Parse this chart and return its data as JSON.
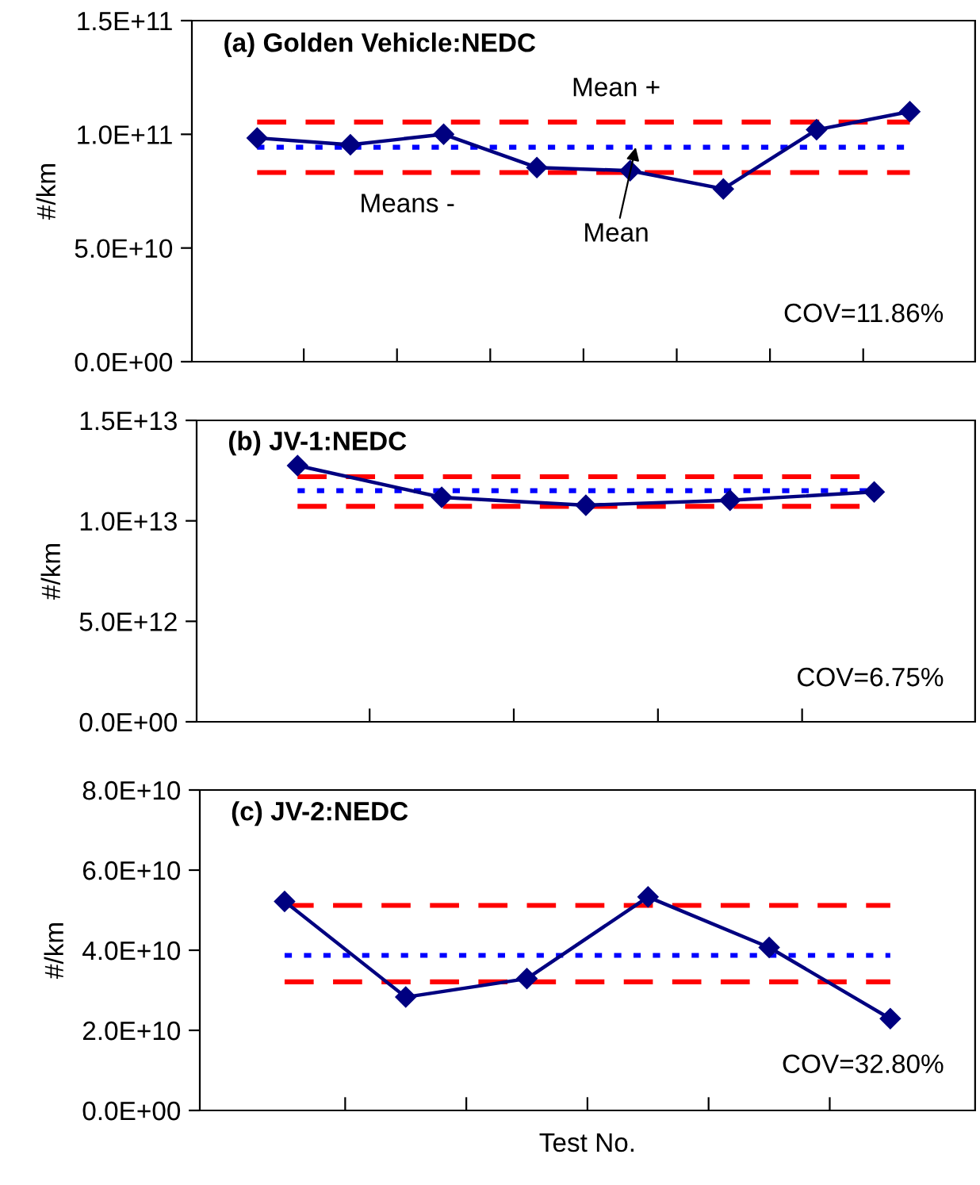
{
  "chart_data": [
    {
      "type": "line",
      "title": "(a) Golden Vehicle:NEDC",
      "ylabel": "#/km",
      "categories": [
        null,
        null,
        null,
        null,
        null,
        null,
        null,
        null
      ],
      "series": [
        {
          "color": "#000080",
          "values": [
            98400000000.0,
            95400000000.0,
            100000000000.0,
            85400000000.0,
            84000000000.0,
            76000000000.0,
            102000000000.0,
            110000000000.0
          ]
        }
      ],
      "ylim": [
        0,
        150000000000.0
      ],
      "yticks": [
        {
          "value": 0,
          "label": "0.0E+00"
        },
        {
          "value": 50000000000.0,
          "label": "5.0E+10"
        },
        {
          "value": 100000000000.0,
          "label": "1.0E+11"
        },
        {
          "value": 150000000000.0,
          "label": "1.5E+11"
        }
      ],
      "ref_lines": [
        {
          "axis": "y",
          "value": 105400000000.0,
          "label": "Mean +",
          "color": "#ff0000",
          "line_style": "dashed"
        },
        {
          "axis": "y",
          "value": 94300000000.0,
          "label": "Mean",
          "color": "#0000ff",
          "line_style": "dotted"
        },
        {
          "axis": "y",
          "value": 83200000000.0,
          "label": "Means -",
          "color": "#ff0000",
          "line_style": "dashed"
        }
      ],
      "annotations": [
        "COV=11.86%"
      ],
      "marker": "diamond",
      "line_style": "solid",
      "grid": false,
      "legend": false,
      "tick_labels": "y"
    },
    {
      "type": "line",
      "title": "(b) JV-1:NEDC",
      "ylabel": "#/km",
      "categories": [
        null,
        null,
        null,
        null,
        null
      ],
      "series": [
        {
          "color": "#000080",
          "values": [
            12750000000000.0,
            11170000000000.0,
            10780000000000.0,
            11020000000000.0,
            11440000000000.0
          ]
        }
      ],
      "ylim": [
        0,
        15000000000000.0
      ],
      "yticks": [
        {
          "value": 0,
          "label": "0.0E+00"
        },
        {
          "value": 5000000000000.0,
          "label": "5.0E+12"
        },
        {
          "value": 10000000000000.0,
          "label": "1.0E+13"
        },
        {
          "value": 15000000000000.0,
          "label": "1.5E+13"
        }
      ],
      "ref_lines": [
        {
          "axis": "y",
          "value": 12200000000000.0,
          "color": "#ff0000",
          "line_style": "dashed"
        },
        {
          "axis": "y",
          "value": 11500000000000.0,
          "color": "#0000ff",
          "line_style": "dotted"
        },
        {
          "axis": "y",
          "value": 10720000000000.0,
          "color": "#ff0000",
          "line_style": "dashed"
        }
      ],
      "annotations": [
        "COV=6.75%"
      ],
      "marker": "diamond",
      "line_style": "solid",
      "grid": false,
      "legend": false,
      "tick_labels": "y"
    },
    {
      "type": "line",
      "title": "(c) JV-2:NEDC",
      "xlabel": "Test No.",
      "ylabel": "#/km",
      "categories": [
        null,
        null,
        null,
        null,
        null,
        null
      ],
      "series": [
        {
          "color": "#000080",
          "values": [
            52200000000.0,
            28300000000.0,
            32900000000.0,
            53300000000.0,
            40700000000.0,
            22900000000.0
          ]
        }
      ],
      "ylim": [
        0,
        80000000000.0
      ],
      "yticks": [
        {
          "value": 0,
          "label": "0.0E+00"
        },
        {
          "value": 20000000000.0,
          "label": "2.0E+10"
        },
        {
          "value": 40000000000.0,
          "label": "4.0E+10"
        },
        {
          "value": 60000000000.0,
          "label": "6.0E+10"
        },
        {
          "value": 80000000000.0,
          "label": "8.0E+10"
        }
      ],
      "ref_lines": [
        {
          "axis": "y",
          "value": 51200000000.0,
          "color": "#ff0000",
          "line_style": "dashed"
        },
        {
          "axis": "y",
          "value": 38700000000.0,
          "color": "#0000ff",
          "line_style": "dotted"
        },
        {
          "axis": "y",
          "value": 32100000000.0,
          "color": "#ff0000",
          "line_style": "dashed"
        }
      ],
      "annotations": [
        "COV=32.80%"
      ],
      "marker": "diamond",
      "line_style": "solid",
      "grid": false,
      "legend": false,
      "tick_labels": "y"
    }
  ]
}
